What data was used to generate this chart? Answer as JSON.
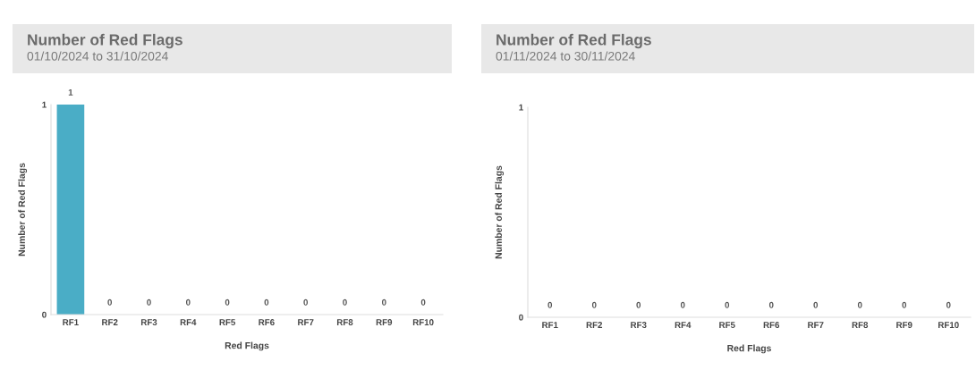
{
  "chart_data": [
    {
      "type": "bar",
      "title": "Number of Red Flags",
      "subtitle": "01/10/2024 to 31/10/2024",
      "xlabel": "Red Flags",
      "ylabel": "Number of Red Flags",
      "categories": [
        "RF1",
        "RF2",
        "RF3",
        "RF4",
        "RF5",
        "RF6",
        "RF7",
        "RF8",
        "RF9",
        "RF10"
      ],
      "values": [
        1,
        0,
        0,
        0,
        0,
        0,
        0,
        0,
        0,
        0
      ],
      "color": "#4aadc6",
      "ylim": [
        0,
        1
      ],
      "yticks": [
        0,
        1
      ],
      "grid": false,
      "data_labels": true
    },
    {
      "type": "bar",
      "title": "Number of Red Flags",
      "subtitle": "01/11/2024 to 30/11/2024",
      "xlabel": "Red Flags",
      "ylabel": "Number of Red Flags",
      "categories": [
        "RF1",
        "RF2",
        "RF3",
        "RF4",
        "RF5",
        "RF6",
        "RF7",
        "RF8",
        "RF9",
        "RF10"
      ],
      "values": [
        0,
        0,
        0,
        0,
        0,
        0,
        0,
        0,
        0,
        0
      ],
      "color": "#4aadc6",
      "ylim": [
        0,
        1
      ],
      "yticks": [
        0,
        1
      ],
      "grid": false,
      "data_labels": true
    }
  ]
}
